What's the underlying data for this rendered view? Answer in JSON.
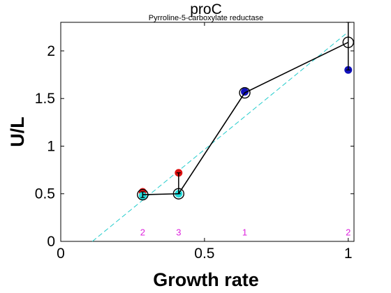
{
  "chart_data": {
    "type": "line",
    "title": "proC",
    "subtitle": "Pyrroline-5-carboxylate reductase",
    "xlabel": "Growth rate",
    "ylabel": "U/L",
    "xlim": [
      0,
      1.02
    ],
    "ylim": [
      0,
      2.3
    ],
    "xticks": [
      0,
      0.5,
      1
    ],
    "xtick_labels": [
      "0",
      "0.5",
      "1"
    ],
    "yticks": [
      0,
      0.5,
      1,
      1.5,
      2
    ],
    "ytick_labels": [
      "0",
      "0.5",
      "1",
      "1.5",
      "2"
    ],
    "grid": false,
    "legend": "none",
    "mean_line": {
      "x": [
        0.285,
        0.41,
        0.64,
        1.0
      ],
      "y": [
        0.49,
        0.5,
        1.56,
        2.09
      ],
      "error_low": [
        0.46,
        0.5,
        1.56,
        1.8
      ],
      "error_high": [
        0.52,
        0.72,
        1.56,
        2.3
      ]
    },
    "fit_line": {
      "x": [
        0.11,
        1.0
      ],
      "y": [
        0.0,
        2.2
      ]
    },
    "points": [
      {
        "x": 0.285,
        "y": 0.52,
        "color": "#dd1111"
      },
      {
        "x": 0.285,
        "y": 0.48,
        "color": "#22dddd"
      },
      {
        "x": 0.41,
        "y": 0.72,
        "color": "#dd1111"
      },
      {
        "x": 0.41,
        "y": 0.5,
        "color": "#22dddd"
      },
      {
        "x": 0.64,
        "y": 1.57,
        "color": "#1111bb"
      },
      {
        "x": 1.0,
        "y": 1.8,
        "color": "#1111bb"
      }
    ],
    "counts": [
      {
        "x": 0.285,
        "label": "2"
      },
      {
        "x": 0.41,
        "label": "3"
      },
      {
        "x": 0.64,
        "label": "1"
      },
      {
        "x": 1.0,
        "label": "2"
      }
    ],
    "count_y": 0.1,
    "colors": {
      "mean": "#000000",
      "fit": "#22cccc",
      "count": "#dd22dd"
    }
  }
}
